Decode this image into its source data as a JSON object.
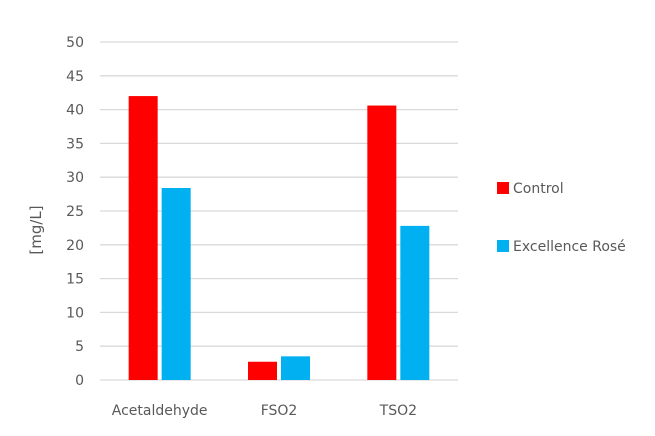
{
  "chart_data": {
    "type": "bar",
    "title": "",
    "xlabel": "",
    "ylabel": "[mg/L]",
    "ylim": [
      0,
      50
    ],
    "yticks": [
      0,
      5,
      10,
      15,
      20,
      25,
      30,
      35,
      40,
      45,
      50
    ],
    "grid": true,
    "legend_position": "right",
    "categories": [
      "Acetaldehyde",
      "FSO2",
      "TSO2"
    ],
    "series": [
      {
        "name": "Control",
        "color": "#ff0000",
        "values": [
          42.0,
          2.7,
          40.6
        ]
      },
      {
        "name": "Excellence Rosé",
        "color": "#00b0f0",
        "values": [
          28.4,
          3.5,
          22.8
        ]
      }
    ]
  }
}
